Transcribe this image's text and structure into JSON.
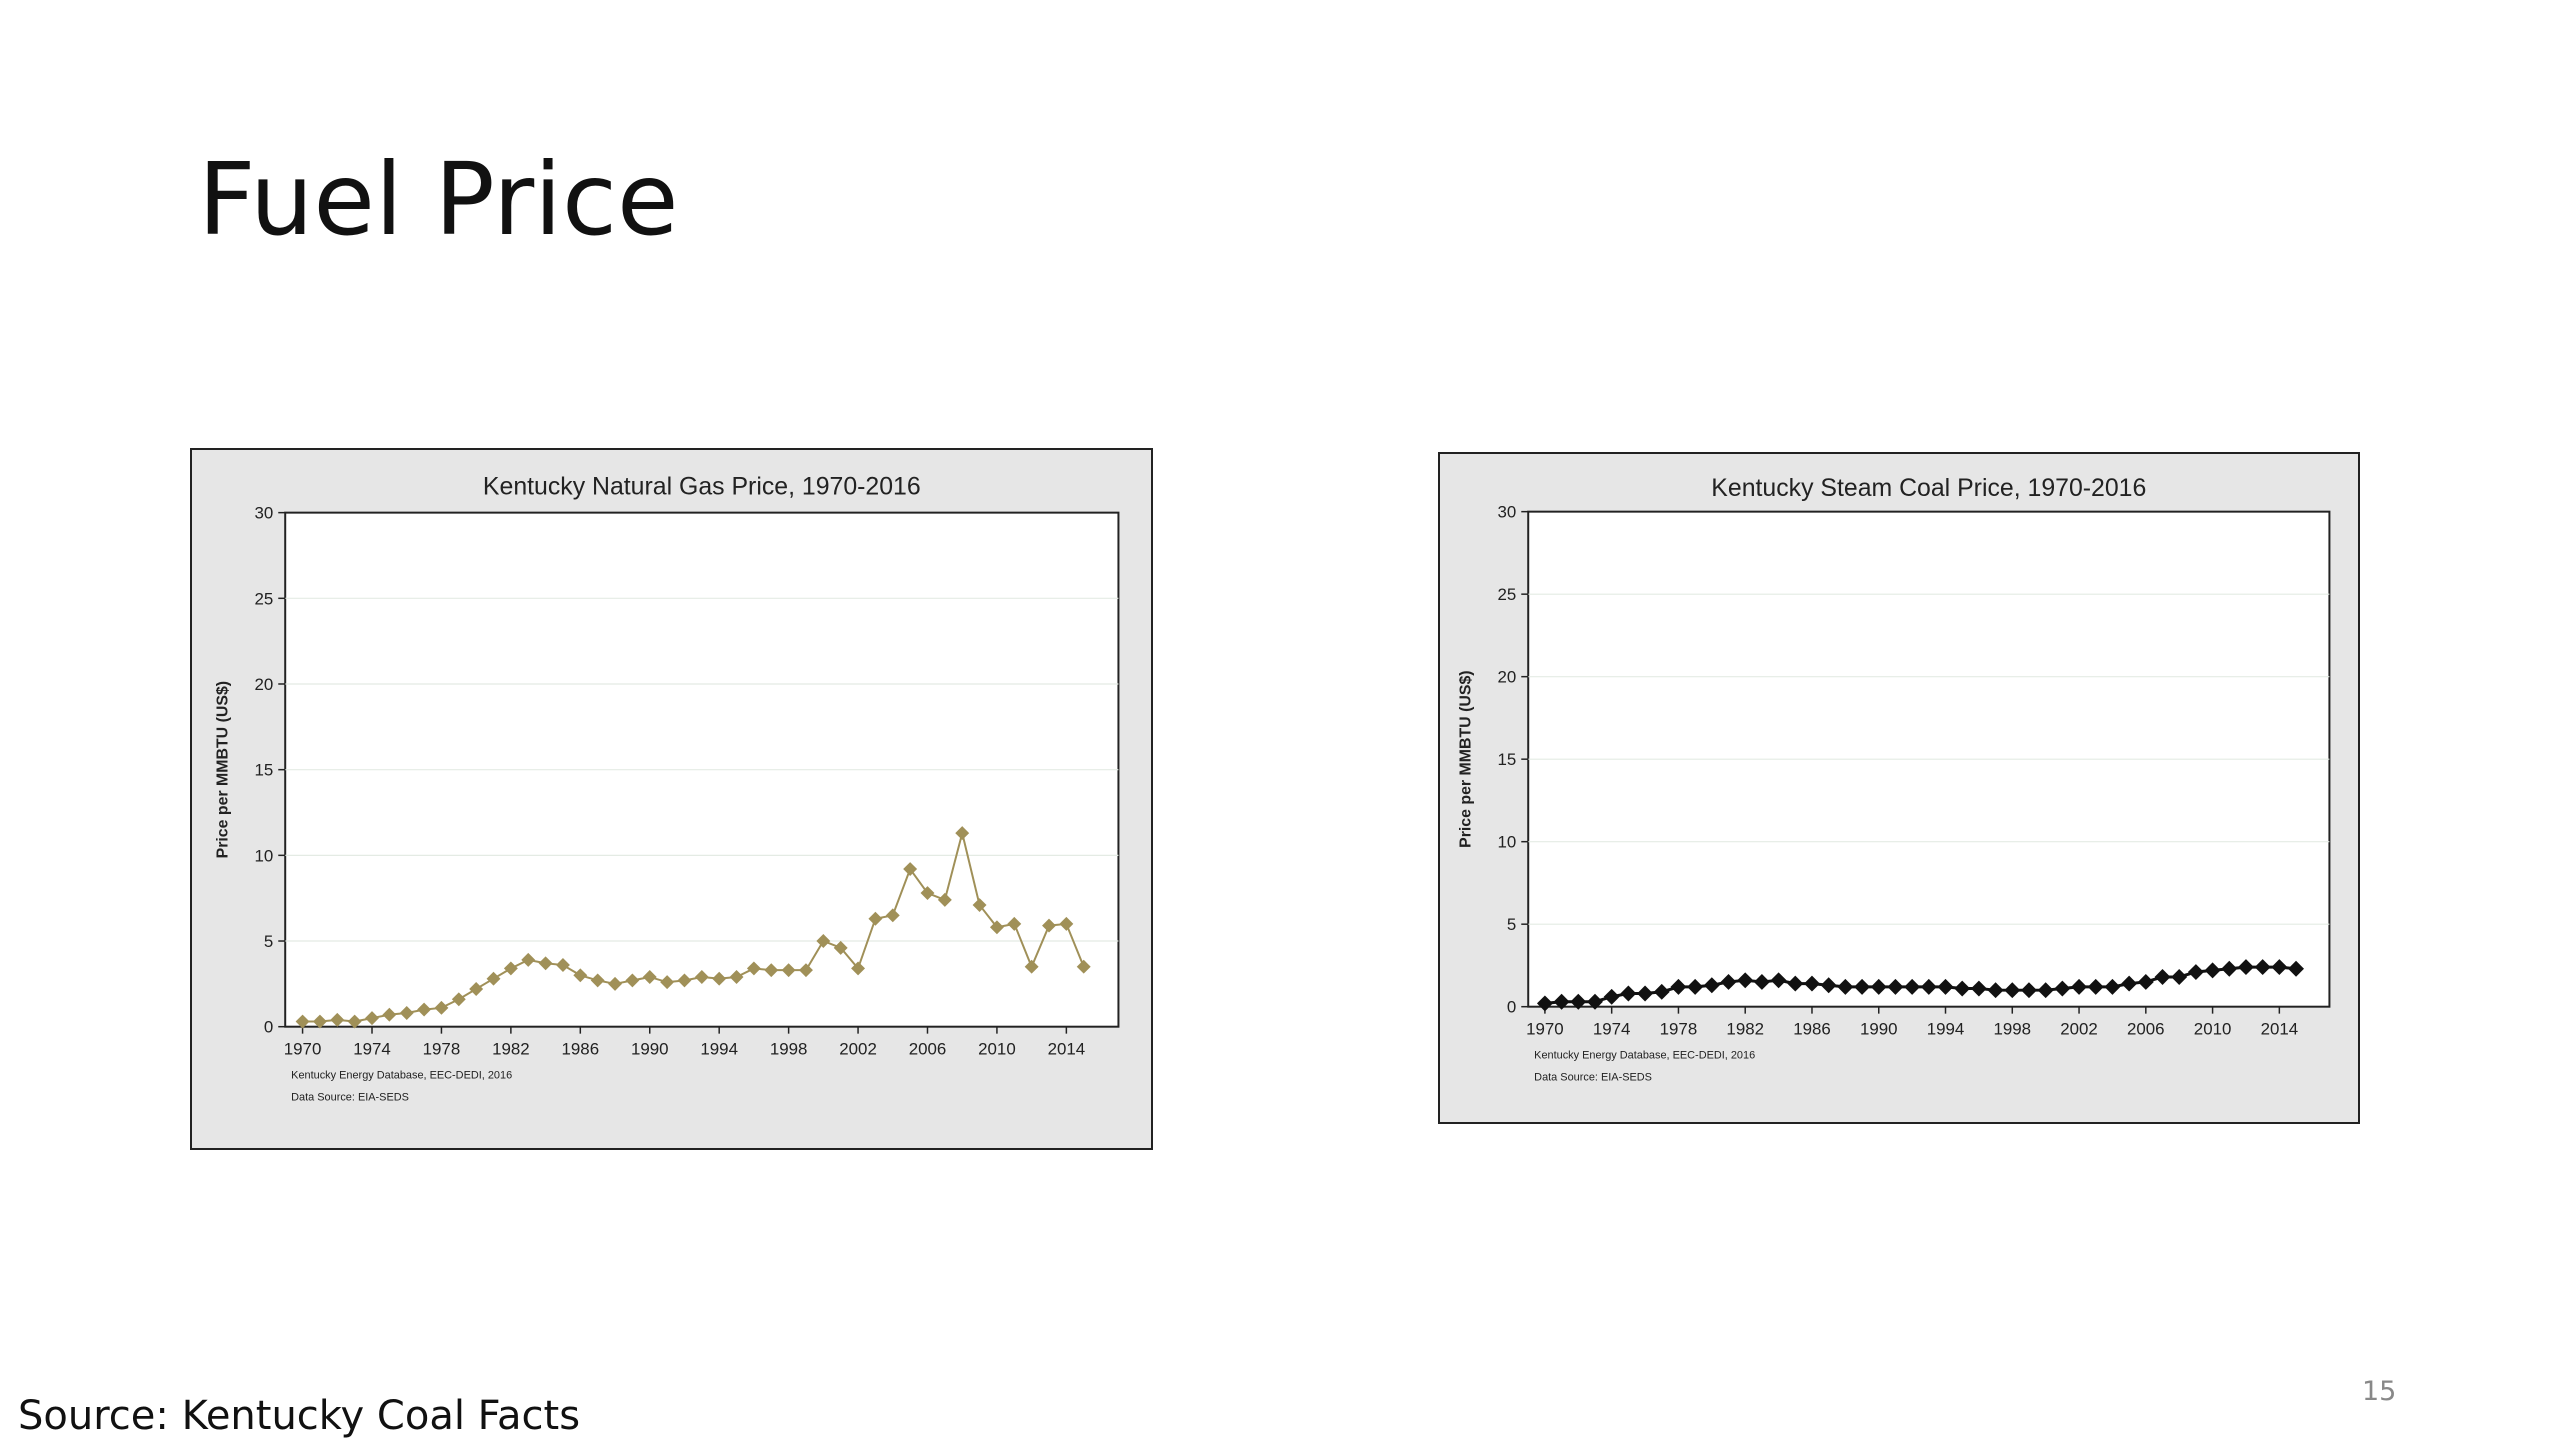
{
  "slide": {
    "title": "Fuel Price",
    "source": "Source: Kentucky Coal Facts",
    "page_number": "15"
  },
  "chart_data": [
    {
      "type": "line",
      "title": "Kentucky Natural Gas Price, 1970-2016",
      "xlabel": "",
      "ylabel": "Price per MMBTU (US$)",
      "x": [
        1970,
        1971,
        1972,
        1973,
        1974,
        1975,
        1976,
        1977,
        1978,
        1979,
        1980,
        1981,
        1982,
        1983,
        1984,
        1985,
        1986,
        1987,
        1988,
        1989,
        1990,
        1991,
        1992,
        1993,
        1994,
        1995,
        1996,
        1997,
        1998,
        1999,
        2000,
        2001,
        2002,
        2003,
        2004,
        2005,
        2006,
        2007,
        2008,
        2009,
        2010,
        2011,
        2012,
        2013,
        2014,
        2015
      ],
      "series": [
        {
          "name": "",
          "color": "#a09058",
          "marker": "diamond",
          "values": [
            0.3,
            0.3,
            0.4,
            0.3,
            0.5,
            0.7,
            0.8,
            1.0,
            1.1,
            1.6,
            2.2,
            2.8,
            3.4,
            3.9,
            3.7,
            3.6,
            3.0,
            2.7,
            2.5,
            2.7,
            2.9,
            2.6,
            2.7,
            2.9,
            2.8,
            2.9,
            3.4,
            3.3,
            3.3,
            3.3,
            5.0,
            4.6,
            3.4,
            6.3,
            6.5,
            9.2,
            7.8,
            7.4,
            11.3,
            7.1,
            5.8,
            6.0,
            3.5,
            5.9,
            6.0,
            3.5
          ]
        }
      ],
      "xlim": [
        1969,
        2017
      ],
      "ylim": [
        0,
        30
      ],
      "xticks": [
        "1970",
        "1974",
        "1978",
        "1982",
        "1986",
        "1990",
        "1994",
        "1998",
        "2002",
        "2006",
        "2010",
        "2014"
      ],
      "yticks": [
        "0",
        "5",
        "10",
        "15",
        "20",
        "25",
        "30"
      ],
      "grid": true,
      "notes": [
        "Kentucky Energy Database, EEC-DEDI, 2016",
        "Data Source: EIA-SEDS"
      ]
    },
    {
      "type": "line",
      "title": "Kentucky Steam Coal Price, 1970-2016",
      "xlabel": "",
      "ylabel": "Price per MMBTU (US$)",
      "x": [
        1970,
        1971,
        1972,
        1973,
        1974,
        1975,
        1976,
        1977,
        1978,
        1979,
        1980,
        1981,
        1982,
        1983,
        1984,
        1985,
        1986,
        1987,
        1988,
        1989,
        1990,
        1991,
        1992,
        1993,
        1994,
        1995,
        1996,
        1997,
        1998,
        1999,
        2000,
        2001,
        2002,
        2003,
        2004,
        2005,
        2006,
        2007,
        2008,
        2009,
        2010,
        2011,
        2012,
        2013,
        2014,
        2015
      ],
      "series": [
        {
          "name": "",
          "color": "#111111",
          "marker": "diamond",
          "values": [
            0.2,
            0.3,
            0.3,
            0.3,
            0.6,
            0.8,
            0.8,
            0.9,
            1.2,
            1.2,
            1.3,
            1.5,
            1.6,
            1.5,
            1.6,
            1.4,
            1.4,
            1.3,
            1.2,
            1.2,
            1.2,
            1.2,
            1.2,
            1.2,
            1.2,
            1.1,
            1.1,
            1.0,
            1.0,
            1.0,
            1.0,
            1.1,
            1.2,
            1.2,
            1.2,
            1.4,
            1.5,
            1.8,
            1.8,
            2.1,
            2.2,
            2.3,
            2.4,
            2.4,
            2.4,
            2.3
          ]
        }
      ],
      "xlim": [
        1969,
        2017
      ],
      "ylim": [
        0,
        30
      ],
      "xticks": [
        "1970",
        "1974",
        "1978",
        "1982",
        "1986",
        "1990",
        "1994",
        "1998",
        "2002",
        "2006",
        "2010",
        "2014"
      ],
      "yticks": [
        "0",
        "5",
        "10",
        "15",
        "20",
        "25",
        "30"
      ],
      "grid": true,
      "notes": [
        "Kentucky Energy Database, EEC-DEDI, 2016",
        "Data Source: EIA-SEDS"
      ]
    }
  ]
}
